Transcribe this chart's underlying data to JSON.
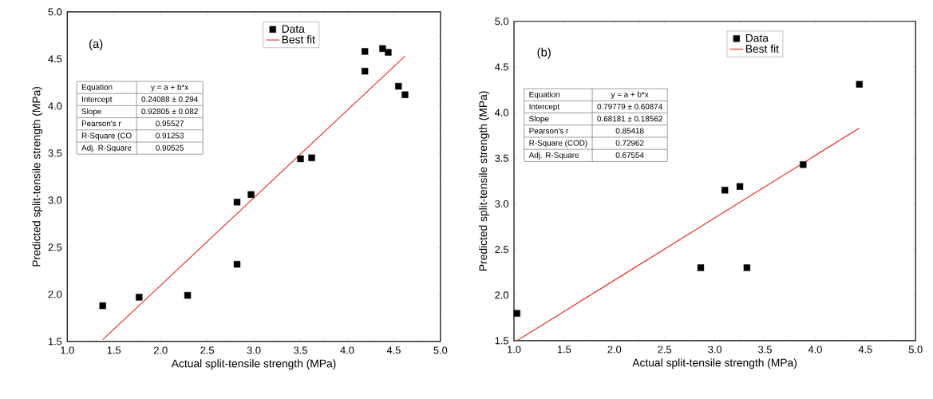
{
  "chart_data": [
    {
      "type": "scatter",
      "xlabel": "Actual split-tensile strength (MPa)",
      "ylabel": "Predicted split-tensile strength (MPa)",
      "xlim": [
        1.0,
        5.0
      ],
      "ylim": [
        1.5,
        5.0
      ],
      "xticks": [
        {
          "value": 1.0,
          "label": "1.0"
        },
        {
          "value": 1.5,
          "label": "1.5"
        },
        {
          "value": 2.0,
          "label": "2.0"
        },
        {
          "value": 2.5,
          "label": "2.5"
        },
        {
          "value": 3.0,
          "label": "3.0"
        },
        {
          "value": 3.5,
          "label": "3.5"
        },
        {
          "value": 4.0,
          "label": "4.0"
        },
        {
          "value": 4.5,
          "label": "4.5"
        },
        {
          "value": 5.0,
          "label": "5.0"
        }
      ],
      "yticks": [
        {
          "value": 1.5,
          "label": "1.5"
        },
        {
          "value": 2.0,
          "label": "2.0"
        },
        {
          "value": 2.5,
          "label": "2.5"
        },
        {
          "value": 3.0,
          "label": "3.0"
        },
        {
          "value": 3.5,
          "label": "3.5"
        },
        {
          "value": 4.0,
          "label": "4.0"
        },
        {
          "value": 4.5,
          "label": "4.5"
        },
        {
          "value": 5.0,
          "label": "5.0"
        }
      ],
      "legend": "top",
      "series": [
        {
          "name": "Data",
          "marker": "square",
          "color": "#000000",
          "x": [
            1.38,
            1.77,
            2.29,
            2.82,
            2.82,
            2.97,
            3.5,
            3.62,
            4.19,
            4.19,
            4.38,
            4.44,
            4.55,
            4.62
          ],
          "values": [
            1.88,
            1.97,
            1.99,
            2.32,
            2.98,
            3.06,
            3.44,
            3.45,
            4.58,
            4.37,
            4.61,
            4.57,
            4.21,
            4.12
          ]
        },
        {
          "name": "Best fit",
          "type": "line",
          "marker": "none",
          "line_style": "solid",
          "color": "#e8231e",
          "x": [
            1.38,
            4.62
          ],
          "values": [
            1.52,
            4.53
          ]
        }
      ],
      "annotations": [
        "(a)",
        "Equation",
        "y = a + b*x",
        "Intercept",
        "0.24088 ± 0.294",
        "Slope",
        "0.92805 ± 0.082",
        "Pearson's r",
        "0.95527",
        "R-Square (CO",
        "0.91253",
        "Adj. R-Square",
        "0.90525"
      ]
    },
    {
      "type": "scatter",
      "xlabel": "Actual split-tensile strength (MPa)",
      "ylabel": "Predicted split-tensile strength (MPa)",
      "xlim": [
        1.0,
        5.0
      ],
      "ylim": [
        1.5,
        5.0
      ],
      "xticks": [
        {
          "value": 1.0,
          "label": "1.0"
        },
        {
          "value": 1.5,
          "label": "1.5"
        },
        {
          "value": 2.0,
          "label": "2.0"
        },
        {
          "value": 2.5,
          "label": "2.5"
        },
        {
          "value": 3.0,
          "label": "3.0"
        },
        {
          "value": 3.5,
          "label": "3.5"
        },
        {
          "value": 4.0,
          "label": "4.0"
        },
        {
          "value": 4.5,
          "label": "4.5"
        },
        {
          "value": 5.0,
          "label": "5.0"
        }
      ],
      "yticks": [
        {
          "value": 1.5,
          "label": "1.5"
        },
        {
          "value": 2.0,
          "label": "2.0"
        },
        {
          "value": 2.5,
          "label": "2.5"
        },
        {
          "value": 3.0,
          "label": "3.0"
        },
        {
          "value": 3.5,
          "label": "3.5"
        },
        {
          "value": 4.0,
          "label": "4.0"
        },
        {
          "value": 4.5,
          "label": "4.5"
        },
        {
          "value": 5.0,
          "label": "5.0"
        }
      ],
      "legend": "top",
      "series": [
        {
          "name": "Data",
          "marker": "square",
          "color": "#000000",
          "x": [
            1.03,
            2.86,
            3.1,
            3.25,
            3.32,
            3.88,
            4.44
          ],
          "values": [
            1.8,
            2.3,
            3.15,
            3.19,
            2.3,
            3.43,
            4.31
          ]
        },
        {
          "name": "Best fit",
          "type": "line",
          "marker": "none",
          "line_style": "solid",
          "color": "#e8231e",
          "x": [
            1.03,
            4.44
          ],
          "values": [
            1.5,
            3.83
          ]
        }
      ],
      "annotations": [
        "(b)",
        "Equation",
        "y = a + b*x",
        "Intercept",
        "0.79779 ± 0.60874",
        "Slope",
        "0.68181 ± 0.18562",
        "Pearson's r",
        "0.85418",
        "R-Square (COD)",
        "0.72962",
        "Adj. R-Square",
        "0.67554"
      ]
    }
  ]
}
